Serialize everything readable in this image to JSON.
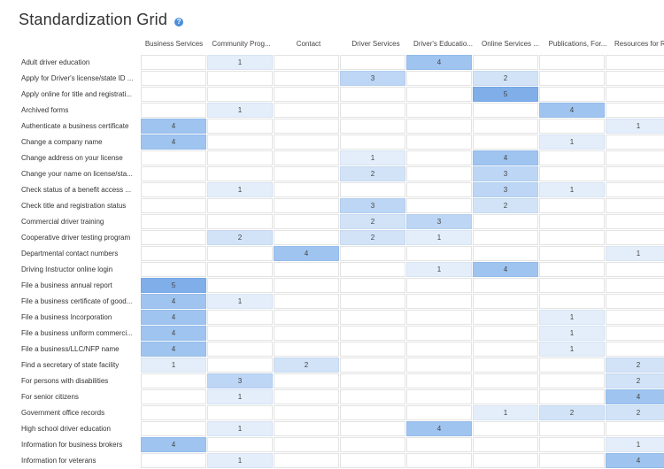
{
  "title": "Standardization Grid",
  "help_icon": "?",
  "columns": [
    "Business Services",
    "Community Prog...",
    "Contact",
    "Driver Services",
    "Driver's Educatio...",
    "Online Services ...",
    "Publications, For...",
    "Resources for Re..."
  ],
  "rows": [
    {
      "label": "Adult driver education",
      "cells": [
        "",
        "1",
        "",
        "",
        "4",
        "",
        "",
        ""
      ]
    },
    {
      "label": "Apply for Driver's license/state ID ...",
      "cells": [
        "",
        "",
        "",
        "3",
        "",
        "2",
        "",
        ""
      ]
    },
    {
      "label": "Apply online for title and registrati...",
      "cells": [
        "",
        "",
        "",
        "",
        "",
        "5",
        "",
        ""
      ]
    },
    {
      "label": "Archived forms",
      "cells": [
        "",
        "1",
        "",
        "",
        "",
        "",
        "4",
        ""
      ]
    },
    {
      "label": "Authenticate a business certificate",
      "cells": [
        "4",
        "",
        "",
        "",
        "",
        "",
        "",
        "1"
      ]
    },
    {
      "label": "Change a company name",
      "cells": [
        "4",
        "",
        "",
        "",
        "",
        "",
        "1",
        ""
      ]
    },
    {
      "label": "Change address on your license",
      "cells": [
        "",
        "",
        "",
        "1",
        "",
        "4",
        "",
        ""
      ]
    },
    {
      "label": "Change your name on license/sta...",
      "cells": [
        "",
        "",
        "",
        "2",
        "",
        "3",
        "",
        ""
      ]
    },
    {
      "label": "Check status of a benefit access ...",
      "cells": [
        "",
        "1",
        "",
        "",
        "",
        "3",
        "1",
        ""
      ]
    },
    {
      "label": "Check title and registration status",
      "cells": [
        "",
        "",
        "",
        "3",
        "",
        "2",
        "",
        ""
      ]
    },
    {
      "label": "Commercial driver training",
      "cells": [
        "",
        "",
        "",
        "2",
        "3",
        "",
        "",
        ""
      ]
    },
    {
      "label": "Cooperative driver testing program",
      "cells": [
        "",
        "2",
        "",
        "2",
        "1",
        "",
        "",
        ""
      ]
    },
    {
      "label": "Departmental contact numbers",
      "cells": [
        "",
        "",
        "4",
        "",
        "",
        "",
        "",
        "1"
      ]
    },
    {
      "label": "Driving Instructor online login",
      "cells": [
        "",
        "",
        "",
        "",
        "1",
        "4",
        "",
        ""
      ]
    },
    {
      "label": "File a business annual report",
      "cells": [
        "5",
        "",
        "",
        "",
        "",
        "",
        "",
        ""
      ]
    },
    {
      "label": "File a business certificate of good...",
      "cells": [
        "4",
        "1",
        "",
        "",
        "",
        "",
        "",
        ""
      ]
    },
    {
      "label": "File a business Incorporation",
      "cells": [
        "4",
        "",
        "",
        "",
        "",
        "",
        "1",
        ""
      ]
    },
    {
      "label": "File a business uniform commerci...",
      "cells": [
        "4",
        "",
        "",
        "",
        "",
        "",
        "1",
        ""
      ]
    },
    {
      "label": "File a business/LLC/NFP name",
      "cells": [
        "4",
        "",
        "",
        "",
        "",
        "",
        "1",
        ""
      ]
    },
    {
      "label": "Find a secretary of state facility",
      "cells": [
        "1",
        "",
        "2",
        "",
        "",
        "",
        "",
        "2"
      ]
    },
    {
      "label": "For persons with disabilities",
      "cells": [
        "",
        "3",
        "",
        "",
        "",
        "",
        "",
        "2"
      ]
    },
    {
      "label": "For senior citizens",
      "cells": [
        "",
        "1",
        "",
        "",
        "",
        "",
        "",
        "4"
      ]
    },
    {
      "label": "Government office records",
      "cells": [
        "",
        "",
        "",
        "",
        "",
        "1",
        "2",
        "2"
      ]
    },
    {
      "label": "High school driver education",
      "cells": [
        "",
        "1",
        "",
        "",
        "4",
        "",
        "",
        ""
      ]
    },
    {
      "label": "Information for business brokers",
      "cells": [
        "4",
        "",
        "",
        "",
        "",
        "",
        "",
        "1"
      ]
    },
    {
      "label": "Information for veterans",
      "cells": [
        "",
        "1",
        "",
        "",
        "",
        "",
        "",
        "4"
      ]
    }
  ],
  "colors": {
    "level1": "#e4eefa",
    "level2": "#d2e3f7",
    "level3": "#bdd6f5",
    "level4": "#a0c4f0",
    "level5": "#80aee9"
  }
}
